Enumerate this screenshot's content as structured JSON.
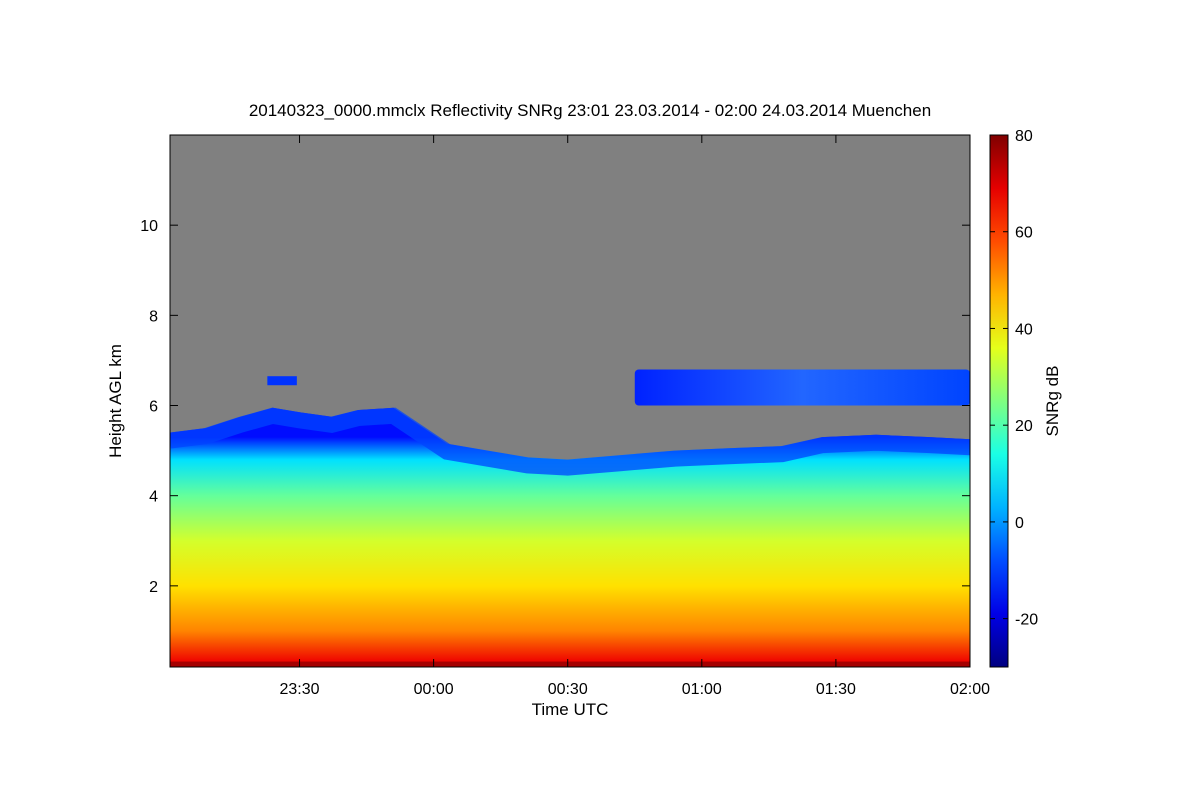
{
  "chart_data": {
    "type": "heatmap",
    "title": "20140323_0000.mmclx Reflectivity SNRg   23:01 23.03.2014 - 02:00 24.03.2014 Muenchen",
    "xlabel": "Time UTC",
    "ylabel": "Height AGL km",
    "xlim_hours": [
      -0.983,
      2.0
    ],
    "x_tick_values": [
      -0.5,
      0.0,
      0.5,
      1.0,
      1.5,
      2.0
    ],
    "x_tick_labels": [
      "23:30",
      "00:00",
      "00:30",
      "01:00",
      "01:30",
      "02:00"
    ],
    "ylim": [
      0.2,
      12.0
    ],
    "y_ticks": [
      2,
      4,
      6,
      8,
      10
    ],
    "colorbar": {
      "label": "SNRg dB",
      "range": [
        -30,
        80
      ],
      "ticks": [
        -20,
        0,
        20,
        40,
        60,
        80
      ],
      "colormap": "jet"
    },
    "background_color": "#808080",
    "cloud_top_km": [
      [
        -0.983,
        5.4
      ],
      [
        -0.85,
        5.5
      ],
      [
        -0.72,
        5.75
      ],
      [
        -0.6,
        5.95
      ],
      [
        -0.5,
        5.85
      ],
      [
        -0.38,
        5.75
      ],
      [
        -0.28,
        5.9
      ],
      [
        -0.15,
        5.95
      ],
      [
        -0.05,
        5.55
      ],
      [
        0.05,
        5.15
      ],
      [
        0.2,
        5.0
      ],
      [
        0.35,
        4.85
      ],
      [
        0.5,
        4.8
      ],
      [
        0.7,
        4.9
      ],
      [
        0.9,
        5.0
      ],
      [
        1.1,
        5.05
      ],
      [
        1.3,
        5.1
      ],
      [
        1.45,
        5.3
      ],
      [
        1.65,
        5.35
      ],
      [
        1.85,
        5.3
      ],
      [
        2.0,
        5.25
      ]
    ],
    "upper_cloud_layer": {
      "x_range_hours": [
        0.75,
        2.0
      ],
      "base_km": 6.0,
      "top_km": 6.8
    },
    "small_cloud_patch": {
      "x_range_hours": [
        -0.62,
        -0.51
      ],
      "base_km": 6.45,
      "top_km": 6.65
    },
    "vertical_structure_snr_db": [
      {
        "height_km": 0.3,
        "snr": 68
      },
      {
        "height_km": 1.0,
        "snr": 52
      },
      {
        "height_km": 2.0,
        "snr": 42
      },
      {
        "height_km": 3.0,
        "snr": 34
      },
      {
        "height_km": 4.0,
        "snr": 22
      },
      {
        "height_km": 4.8,
        "snr": 8
      },
      {
        "height_km": 5.3,
        "snr": -15
      }
    ]
  }
}
